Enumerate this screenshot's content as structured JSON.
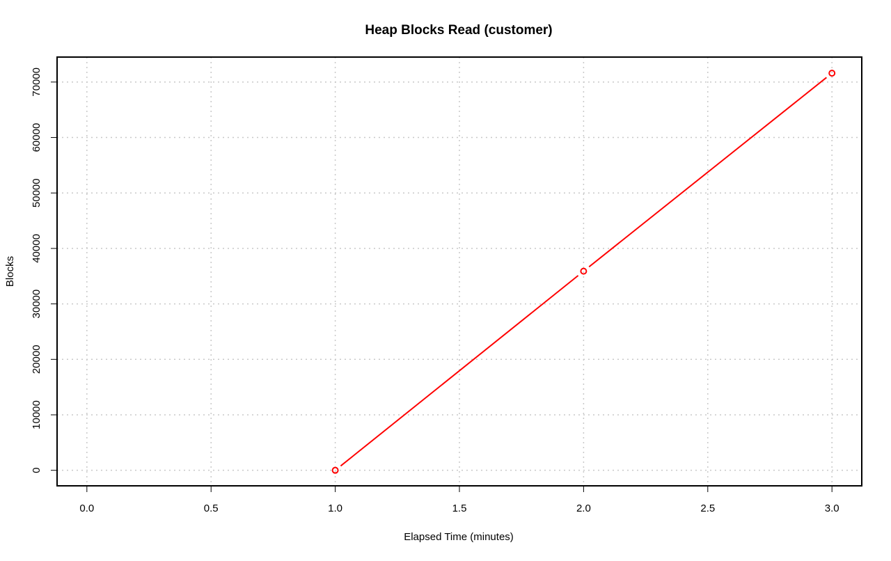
{
  "chart_data": {
    "type": "line",
    "title": "Heap Blocks Read (customer)",
    "xlabel": "Elapsed Time (minutes)",
    "ylabel": "Blocks",
    "xlim": [
      -0.12,
      3.12
    ],
    "ylim": [
      -2800,
      74500
    ],
    "x_ticks": [
      0.0,
      0.5,
      1.0,
      1.5,
      2.0,
      2.5,
      3.0
    ],
    "x_tick_labels": [
      "0.0",
      "0.5",
      "1.0",
      "1.5",
      "2.0",
      "2.5",
      "3.0"
    ],
    "y_ticks": [
      0,
      10000,
      20000,
      30000,
      40000,
      50000,
      60000,
      70000
    ],
    "y_tick_labels": [
      "0",
      "10000",
      "20000",
      "30000",
      "40000",
      "50000",
      "60000",
      "70000"
    ],
    "grid": true,
    "series": [
      {
        "color": "#ff0000",
        "marker": "open-circle",
        "x": [
          1.0,
          2.0,
          3.0
        ],
        "y": [
          0,
          35900,
          71600
        ]
      }
    ]
  }
}
